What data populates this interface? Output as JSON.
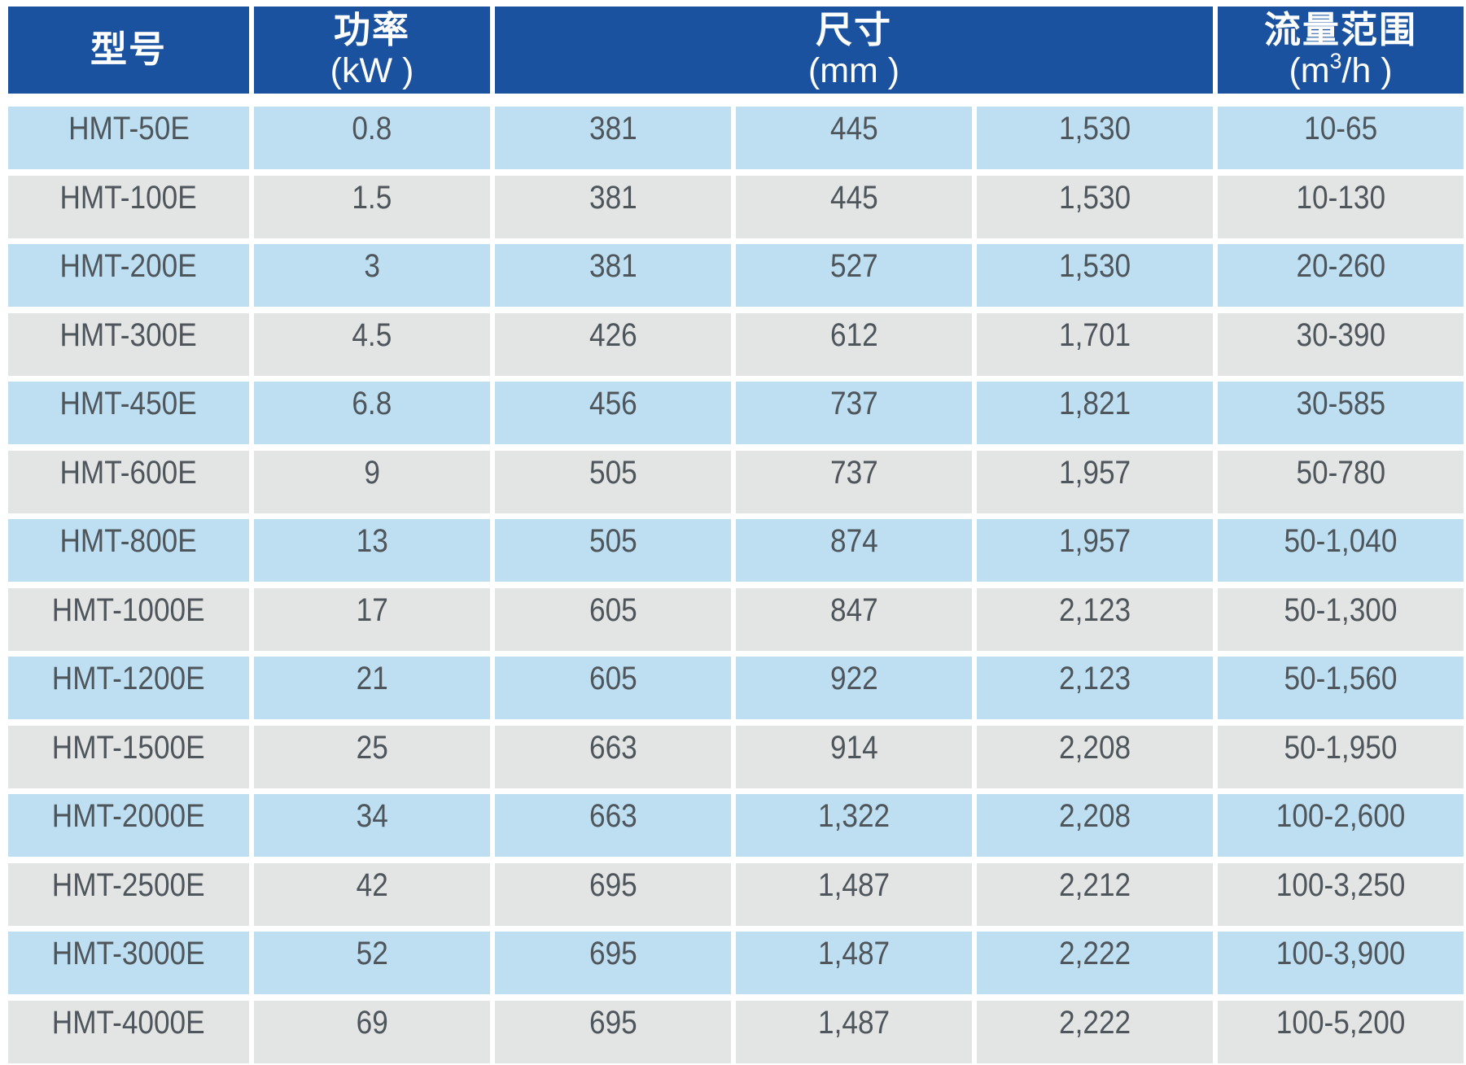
{
  "colors": {
    "header_bg": "#1b529f",
    "row_blue": "#bedff2",
    "row_gray": "#e3e4e4",
    "header_text": "#ffffff",
    "cell_text": "#4e555b",
    "page_bg": "#ffffff"
  },
  "table": {
    "columns": {
      "model": {
        "title": "型号"
      },
      "power": {
        "title": "功率",
        "unit": "(kW )"
      },
      "dimensions": {
        "title": "尺寸",
        "unit": "(mm )"
      },
      "flow": {
        "title": "流量范围",
        "unit_pre": "(m",
        "unit_sup": "3",
        "unit_post": "/h )"
      }
    },
    "rows": [
      {
        "model": "HMT-50E",
        "power": "0.8",
        "dim_w": "381",
        "dim_d": "445",
        "dim_h": "1,530",
        "flow": "10-65"
      },
      {
        "model": "HMT-100E",
        "power": "1.5",
        "dim_w": "381",
        "dim_d": "445",
        "dim_h": "1,530",
        "flow": "10-130"
      },
      {
        "model": "HMT-200E",
        "power": "3",
        "dim_w": "381",
        "dim_d": "527",
        "dim_h": "1,530",
        "flow": "20-260"
      },
      {
        "model": "HMT-300E",
        "power": "4.5",
        "dim_w": "426",
        "dim_d": "612",
        "dim_h": "1,701",
        "flow": "30-390"
      },
      {
        "model": "HMT-450E",
        "power": "6.8",
        "dim_w": "456",
        "dim_d": "737",
        "dim_h": "1,821",
        "flow": "30-585"
      },
      {
        "model": "HMT-600E",
        "power": "9",
        "dim_w": "505",
        "dim_d": "737",
        "dim_h": "1,957",
        "flow": "50-780"
      },
      {
        "model": "HMT-800E",
        "power": "13",
        "dim_w": "505",
        "dim_d": "874",
        "dim_h": "1,957",
        "flow": "50-1,040"
      },
      {
        "model": "HMT-1000E",
        "power": "17",
        "dim_w": "605",
        "dim_d": "847",
        "dim_h": "2,123",
        "flow": "50-1,300"
      },
      {
        "model": "HMT-1200E",
        "power": "21",
        "dim_w": "605",
        "dim_d": "922",
        "dim_h": "2,123",
        "flow": "50-1,560"
      },
      {
        "model": "HMT-1500E",
        "power": "25",
        "dim_w": "663",
        "dim_d": "914",
        "dim_h": "2,208",
        "flow": "50-1,950"
      },
      {
        "model": "HMT-2000E",
        "power": "34",
        "dim_w": "663",
        "dim_d": "1,322",
        "dim_h": "2,208",
        "flow": "100-2,600"
      },
      {
        "model": "HMT-2500E",
        "power": "42",
        "dim_w": "695",
        "dim_d": "1,487",
        "dim_h": "2,212",
        "flow": "100-3,250"
      },
      {
        "model": "HMT-3000E",
        "power": "52",
        "dim_w": "695",
        "dim_d": "1,487",
        "dim_h": "2,222",
        "flow": "100-3,900"
      },
      {
        "model": "HMT-4000E",
        "power": "69",
        "dim_w": "695",
        "dim_d": "1,487",
        "dim_h": "2,222",
        "flow": "100-5,200"
      }
    ]
  }
}
